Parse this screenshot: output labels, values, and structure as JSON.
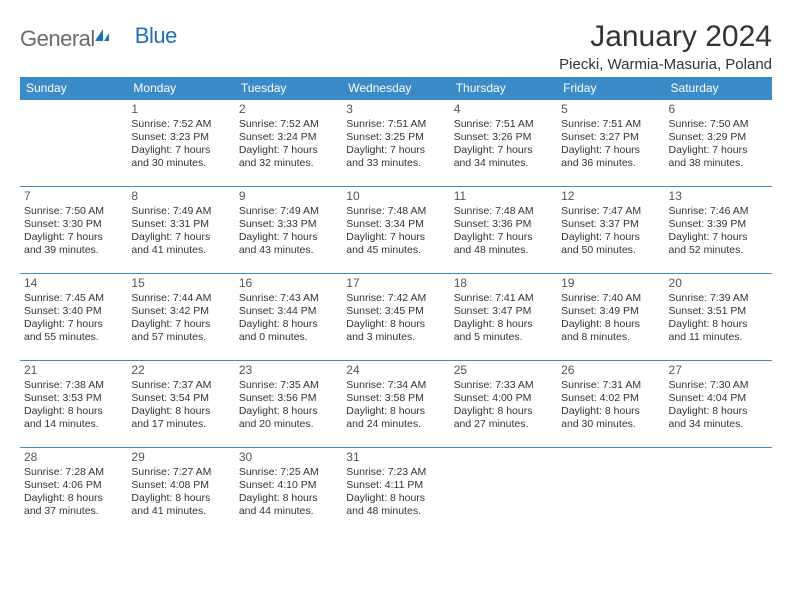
{
  "logo": {
    "text_gray": "General",
    "text_blue": "Blue"
  },
  "title": "January 2024",
  "location": "Piecki, Warmia-Masuria, Poland",
  "colors": {
    "header_bg": "#3b8bc9",
    "header_fg": "#ffffff",
    "cell_border": "#3b8bc9",
    "text": "#333333",
    "logo_gray": "#6b6b6b",
    "logo_blue": "#1e6fb8",
    "page_bg": "#ffffff"
  },
  "fonts": {
    "title_size_pt": 30,
    "location_size_pt": 15,
    "weekday_size_pt": 12,
    "daynum_size_pt": 12,
    "body_size_pt": 10.5,
    "family": "Arial"
  },
  "weekdays": [
    "Sunday",
    "Monday",
    "Tuesday",
    "Wednesday",
    "Thursday",
    "Friday",
    "Saturday"
  ],
  "weeks": [
    [
      null,
      {
        "n": "1",
        "sr": "Sunrise: 7:52 AM",
        "ss": "Sunset: 3:23 PM",
        "d1": "Daylight: 7 hours",
        "d2": "and 30 minutes."
      },
      {
        "n": "2",
        "sr": "Sunrise: 7:52 AM",
        "ss": "Sunset: 3:24 PM",
        "d1": "Daylight: 7 hours",
        "d2": "and 32 minutes."
      },
      {
        "n": "3",
        "sr": "Sunrise: 7:51 AM",
        "ss": "Sunset: 3:25 PM",
        "d1": "Daylight: 7 hours",
        "d2": "and 33 minutes."
      },
      {
        "n": "4",
        "sr": "Sunrise: 7:51 AM",
        "ss": "Sunset: 3:26 PM",
        "d1": "Daylight: 7 hours",
        "d2": "and 34 minutes."
      },
      {
        "n": "5",
        "sr": "Sunrise: 7:51 AM",
        "ss": "Sunset: 3:27 PM",
        "d1": "Daylight: 7 hours",
        "d2": "and 36 minutes."
      },
      {
        "n": "6",
        "sr": "Sunrise: 7:50 AM",
        "ss": "Sunset: 3:29 PM",
        "d1": "Daylight: 7 hours",
        "d2": "and 38 minutes."
      }
    ],
    [
      {
        "n": "7",
        "sr": "Sunrise: 7:50 AM",
        "ss": "Sunset: 3:30 PM",
        "d1": "Daylight: 7 hours",
        "d2": "and 39 minutes."
      },
      {
        "n": "8",
        "sr": "Sunrise: 7:49 AM",
        "ss": "Sunset: 3:31 PM",
        "d1": "Daylight: 7 hours",
        "d2": "and 41 minutes."
      },
      {
        "n": "9",
        "sr": "Sunrise: 7:49 AM",
        "ss": "Sunset: 3:33 PM",
        "d1": "Daylight: 7 hours",
        "d2": "and 43 minutes."
      },
      {
        "n": "10",
        "sr": "Sunrise: 7:48 AM",
        "ss": "Sunset: 3:34 PM",
        "d1": "Daylight: 7 hours",
        "d2": "and 45 minutes."
      },
      {
        "n": "11",
        "sr": "Sunrise: 7:48 AM",
        "ss": "Sunset: 3:36 PM",
        "d1": "Daylight: 7 hours",
        "d2": "and 48 minutes."
      },
      {
        "n": "12",
        "sr": "Sunrise: 7:47 AM",
        "ss": "Sunset: 3:37 PM",
        "d1": "Daylight: 7 hours",
        "d2": "and 50 minutes."
      },
      {
        "n": "13",
        "sr": "Sunrise: 7:46 AM",
        "ss": "Sunset: 3:39 PM",
        "d1": "Daylight: 7 hours",
        "d2": "and 52 minutes."
      }
    ],
    [
      {
        "n": "14",
        "sr": "Sunrise: 7:45 AM",
        "ss": "Sunset: 3:40 PM",
        "d1": "Daylight: 7 hours",
        "d2": "and 55 minutes."
      },
      {
        "n": "15",
        "sr": "Sunrise: 7:44 AM",
        "ss": "Sunset: 3:42 PM",
        "d1": "Daylight: 7 hours",
        "d2": "and 57 minutes."
      },
      {
        "n": "16",
        "sr": "Sunrise: 7:43 AM",
        "ss": "Sunset: 3:44 PM",
        "d1": "Daylight: 8 hours",
        "d2": "and 0 minutes."
      },
      {
        "n": "17",
        "sr": "Sunrise: 7:42 AM",
        "ss": "Sunset: 3:45 PM",
        "d1": "Daylight: 8 hours",
        "d2": "and 3 minutes."
      },
      {
        "n": "18",
        "sr": "Sunrise: 7:41 AM",
        "ss": "Sunset: 3:47 PM",
        "d1": "Daylight: 8 hours",
        "d2": "and 5 minutes."
      },
      {
        "n": "19",
        "sr": "Sunrise: 7:40 AM",
        "ss": "Sunset: 3:49 PM",
        "d1": "Daylight: 8 hours",
        "d2": "and 8 minutes."
      },
      {
        "n": "20",
        "sr": "Sunrise: 7:39 AM",
        "ss": "Sunset: 3:51 PM",
        "d1": "Daylight: 8 hours",
        "d2": "and 11 minutes."
      }
    ],
    [
      {
        "n": "21",
        "sr": "Sunrise: 7:38 AM",
        "ss": "Sunset: 3:53 PM",
        "d1": "Daylight: 8 hours",
        "d2": "and 14 minutes."
      },
      {
        "n": "22",
        "sr": "Sunrise: 7:37 AM",
        "ss": "Sunset: 3:54 PM",
        "d1": "Daylight: 8 hours",
        "d2": "and 17 minutes."
      },
      {
        "n": "23",
        "sr": "Sunrise: 7:35 AM",
        "ss": "Sunset: 3:56 PM",
        "d1": "Daylight: 8 hours",
        "d2": "and 20 minutes."
      },
      {
        "n": "24",
        "sr": "Sunrise: 7:34 AM",
        "ss": "Sunset: 3:58 PM",
        "d1": "Daylight: 8 hours",
        "d2": "and 24 minutes."
      },
      {
        "n": "25",
        "sr": "Sunrise: 7:33 AM",
        "ss": "Sunset: 4:00 PM",
        "d1": "Daylight: 8 hours",
        "d2": "and 27 minutes."
      },
      {
        "n": "26",
        "sr": "Sunrise: 7:31 AM",
        "ss": "Sunset: 4:02 PM",
        "d1": "Daylight: 8 hours",
        "d2": "and 30 minutes."
      },
      {
        "n": "27",
        "sr": "Sunrise: 7:30 AM",
        "ss": "Sunset: 4:04 PM",
        "d1": "Daylight: 8 hours",
        "d2": "and 34 minutes."
      }
    ],
    [
      {
        "n": "28",
        "sr": "Sunrise: 7:28 AM",
        "ss": "Sunset: 4:06 PM",
        "d1": "Daylight: 8 hours",
        "d2": "and 37 minutes."
      },
      {
        "n": "29",
        "sr": "Sunrise: 7:27 AM",
        "ss": "Sunset: 4:08 PM",
        "d1": "Daylight: 8 hours",
        "d2": "and 41 minutes."
      },
      {
        "n": "30",
        "sr": "Sunrise: 7:25 AM",
        "ss": "Sunset: 4:10 PM",
        "d1": "Daylight: 8 hours",
        "d2": "and 44 minutes."
      },
      {
        "n": "31",
        "sr": "Sunrise: 7:23 AM",
        "ss": "Sunset: 4:11 PM",
        "d1": "Daylight: 8 hours",
        "d2": "and 48 minutes."
      },
      null,
      null,
      null
    ]
  ]
}
